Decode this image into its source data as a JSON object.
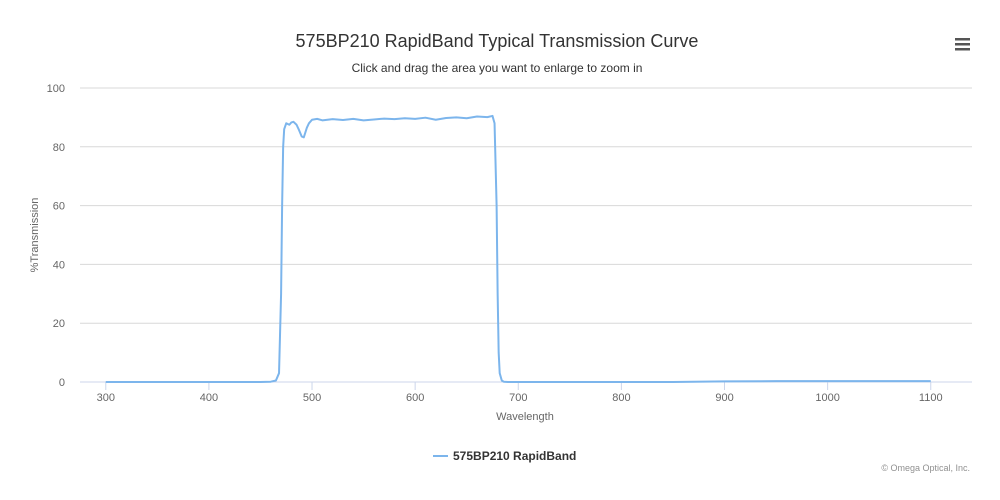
{
  "chart_data": {
    "type": "line",
    "title": "575BP210 RapidBand Typical Transmission Curve",
    "subtitle": "Click and drag the area you want to enlarge to zoom in",
    "xlabel": "Wavelength",
    "ylabel": "%Transmission",
    "xlim": [
      275,
      1140
    ],
    "ylim": [
      0,
      100
    ],
    "xticks": [
      300,
      400,
      500,
      600,
      700,
      800,
      900,
      1000,
      1100
    ],
    "yticks": [
      0,
      20,
      40,
      60,
      80,
      100
    ],
    "grid": true,
    "legend_position": "bottom-center",
    "series": [
      {
        "name": "575BP210 RapidBand",
        "color": "#7cb5ec",
        "x": [
          300,
          350,
          400,
          450,
          460,
          465,
          468,
          470,
          471,
          472,
          473,
          475,
          478,
          480,
          482,
          485,
          487,
          490,
          492,
          495,
          497,
          500,
          505,
          510,
          520,
          530,
          540,
          550,
          560,
          570,
          580,
          590,
          600,
          610,
          620,
          630,
          640,
          650,
          660,
          670,
          675,
          677,
          679,
          680,
          681,
          682,
          684,
          686,
          690,
          700,
          750,
          800,
          850,
          900,
          950,
          1000,
          1050,
          1100
        ],
        "y": [
          0,
          0,
          0,
          0,
          0.1,
          0.5,
          3,
          30,
          60,
          80,
          86,
          88,
          87.5,
          88.3,
          88.5,
          87.5,
          86,
          83.5,
          83.2,
          86.5,
          88,
          89.2,
          89.5,
          89,
          89.4,
          89.1,
          89.5,
          89,
          89.3,
          89.6,
          89.4,
          89.7,
          89.5,
          89.9,
          89.2,
          89.8,
          90,
          89.7,
          90.3,
          90.1,
          90.5,
          88,
          60,
          30,
          10,
          3,
          0.5,
          0.1,
          0,
          0,
          0,
          0,
          0,
          0.2,
          0.3,
          0.3,
          0.3,
          0.3
        ]
      }
    ]
  },
  "credits": "© Omega Optical, Inc.",
  "menu": {
    "icon": "hamburger-menu-icon"
  }
}
